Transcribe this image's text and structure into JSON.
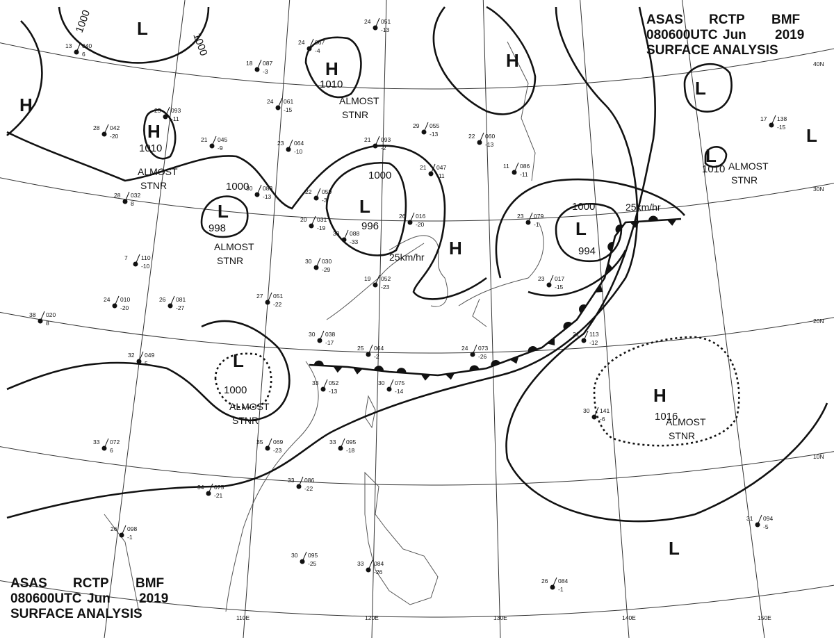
{
  "header": {
    "agency": "ASAS",
    "center": "RCTP",
    "office": "BMF",
    "time": "080600UTC",
    "month": "Jun",
    "year": "2019",
    "title": "SURFACE ANALYSIS"
  },
  "longitude_labels": [
    "110E",
    "120E",
    "130E",
    "140E",
    "150E"
  ],
  "latitude_labels": [
    "40N",
    "30N",
    "20N",
    "10N"
  ],
  "systems": [
    {
      "type": "L"
    },
    {
      "type": "H"
    },
    {
      "type": "H",
      "pressure": 1010,
      "note": [
        "ALMOST",
        "STNR"
      ]
    },
    {
      "type": "H",
      "pressure": 1010,
      "note": [
        "ALMOST",
        "STNR"
      ]
    },
    {
      "type": "L",
      "pressure": 998,
      "note": [
        "ALMOST",
        "STNR"
      ]
    },
    {
      "type": "L",
      "pressure": 996
    },
    {
      "type": "H"
    },
    {
      "type": "H"
    },
    {
      "type": "L",
      "pressure": 994
    },
    {
      "type": "L"
    },
    {
      "type": "L"
    },
    {
      "type": "L",
      "pressure": 1010,
      "note": [
        "ALMOST",
        "STNR"
      ]
    },
    {
      "type": "L",
      "pressure": 1000,
      "note": [
        "ALMOST",
        "STNR"
      ]
    },
    {
      "type": "H",
      "pressure": 1016,
      "note": [
        "ALMOST",
        "STNR"
      ]
    },
    {
      "type": "L"
    }
  ],
  "isobar_labels": [
    1000,
    1000,
    1000,
    1000,
    1000
  ],
  "movement_labels": [
    "25km/hr",
    "25km/hr"
  ],
  "stations": [
    {
      "temp": 24,
      "pressure": "051",
      "dew": "-13"
    },
    {
      "temp": 24,
      "pressure": "067",
      "dew": "-4"
    },
    {
      "temp": 18,
      "pressure": "087",
      "dew": "-3"
    },
    {
      "temp": 13,
      "pressure": "040",
      "dew": "6"
    },
    {
      "temp": 24,
      "pressure": "061",
      "dew": "-15"
    },
    {
      "temp": 25,
      "pressure": "093",
      "dew": "-11"
    },
    {
      "temp": 28,
      "pressure": "042",
      "dew": "-20"
    },
    {
      "temp": 21,
      "pressure": "045",
      "dew": "-9"
    },
    {
      "temp": 23,
      "pressure": "064",
      "dew": "-10"
    },
    {
      "temp": 21,
      "pressure": "093",
      "dew": "-2"
    },
    {
      "temp": 29,
      "pressure": "055",
      "dew": "-13"
    },
    {
      "temp": 22,
      "pressure": "060",
      "dew": "-13"
    },
    {
      "temp": 21,
      "pressure": "047",
      "dew": "-11"
    },
    {
      "temp": 11,
      "pressure": "086",
      "dew": "-11"
    },
    {
      "temp": 30,
      "pressure": "083",
      "dew": "-13"
    },
    {
      "temp": 28,
      "pressure": "032",
      "dew": "8"
    },
    {
      "temp": 22,
      "pressure": "059",
      "dew": "-3"
    },
    {
      "temp": 20,
      "pressure": "031",
      "dew": "-19"
    },
    {
      "temp": 33,
      "pressure": "088",
      "dew": "-33"
    },
    {
      "temp": 26,
      "pressure": "016",
      "dew": "-20"
    },
    {
      "temp": 30,
      "pressure": "030",
      "dew": "-29"
    },
    {
      "temp": 19,
      "pressure": "052",
      "dew": "-23"
    },
    {
      "temp": 7,
      "pressure": "110",
      "dew": "-10"
    },
    {
      "temp": 27,
      "pressure": "051",
      "dew": "-22"
    },
    {
      "temp": 26,
      "pressure": "081",
      "dew": "-27"
    },
    {
      "temp": 24,
      "pressure": "010",
      "dew": "-20"
    },
    {
      "temp": 38,
      "pressure": "020",
      "dew": "8"
    },
    {
      "temp": 30,
      "pressure": "038",
      "dew": "-17"
    },
    {
      "temp": 25,
      "pressure": "064",
      "dew": "-2"
    },
    {
      "temp": 24,
      "pressure": "073",
      "dew": "-26"
    },
    {
      "temp": 32,
      "pressure": "049",
      "dew": "5"
    },
    {
      "temp": 33,
      "pressure": "052",
      "dew": "-13"
    },
    {
      "temp": 30,
      "pressure": "075",
      "dew": "-14"
    },
    {
      "temp": 33,
      "pressure": "072",
      "dew": "6"
    },
    {
      "temp": 35,
      "pressure": "069",
      "dew": "-23"
    },
    {
      "temp": 33,
      "pressure": "095",
      "dew": "-18"
    },
    {
      "temp": 34,
      "pressure": "075",
      "dew": "-21"
    },
    {
      "temp": 33,
      "pressure": "086",
      "dew": "-22"
    },
    {
      "temp": 26,
      "pressure": "098",
      "dew": "-1"
    },
    {
      "temp": 30,
      "pressure": "095",
      "dew": "-25"
    },
    {
      "temp": 33,
      "pressure": "084",
      "dew": "-26"
    },
    {
      "temp": 26,
      "pressure": "084",
      "dew": "-1"
    },
    {
      "temp": 31,
      "pressure": "094",
      "dew": "-5"
    },
    {
      "temp": 30,
      "pressure": "141",
      "dew": "-6"
    },
    {
      "temp": 17,
      "pressure": "138",
      "dew": "-15"
    },
    {
      "temp": 21,
      "pressure": "113",
      "dew": "-12"
    },
    {
      "temp": 23,
      "pressure": "017",
      "dew": "-15"
    },
    {
      "temp": 23,
      "pressure": "079",
      "dew": "-1"
    }
  ]
}
